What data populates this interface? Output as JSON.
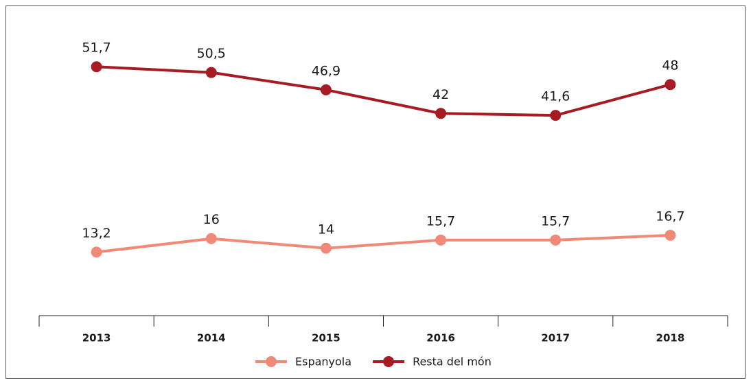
{
  "chart_data": {
    "type": "line",
    "categories": [
      "2013",
      "2014",
      "2015",
      "2016",
      "2017",
      "2018"
    ],
    "series": [
      {
        "name": "Espanyola",
        "color": "#f08a78",
        "values": [
          13.2,
          16,
          14,
          15.7,
          15.7,
          16.7
        ],
        "value_labels": [
          "13,2",
          "16",
          "14",
          "15,7",
          "15,7",
          "16,7"
        ]
      },
      {
        "name": "Resta del món",
        "color": "#a51c24",
        "values": [
          51.7,
          50.5,
          46.9,
          42,
          41.6,
          48
        ],
        "value_labels": [
          "51,7",
          "50,5",
          "46,9",
          "42",
          "41,6",
          "48"
        ]
      }
    ],
    "ylim": [
      0,
      60
    ],
    "legend": "bottom"
  }
}
